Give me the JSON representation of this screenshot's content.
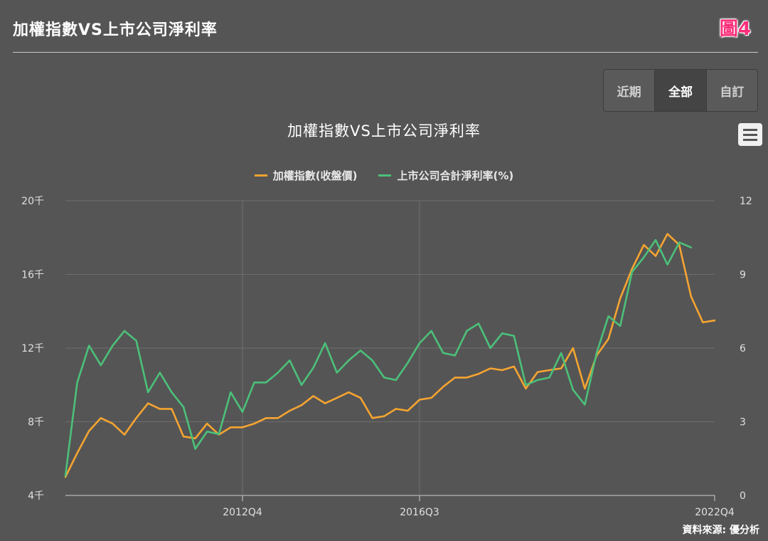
{
  "header": {
    "title": "加權指數VS上市公司淨利率",
    "badge": "圖4"
  },
  "range_selector": {
    "buttons": [
      {
        "label": "近期",
        "active": false
      },
      {
        "label": "全部",
        "active": true
      },
      {
        "label": "自訂",
        "active": false
      }
    ]
  },
  "menu_icon": "hamburger-menu-icon",
  "source_note": "資料來源: 優分析",
  "colors": {
    "background": "#555555",
    "index_series": "#f5a431",
    "margin_series": "#4cc07a",
    "grid": "#6e6e6e",
    "axis_text": "#e0e0e0"
  },
  "chart_data": {
    "type": "line",
    "title": "加權指數VS上市公司淨利率",
    "x_ticks": [
      "2012Q4",
      "2016Q3",
      "2022Q4"
    ],
    "x_tick_index": [
      15,
      30,
      55
    ],
    "left_axis": {
      "ticks": [
        "4千",
        "8千",
        "12千",
        "16千",
        "20千"
      ],
      "min": 4,
      "max": 20,
      "unit": "千"
    },
    "right_axis": {
      "ticks": [
        "0",
        "3",
        "6",
        "9",
        "12"
      ],
      "min": 0,
      "max": 12
    },
    "grid": true,
    "legend_position": "top-center",
    "series": [
      {
        "name": "加權指數(收盤價)",
        "axis": "left",
        "values": [
          5.0,
          6.3,
          7.5,
          8.2,
          7.9,
          7.3,
          8.2,
          9.0,
          8.7,
          8.7,
          7.2,
          7.1,
          7.9,
          7.3,
          7.7,
          7.7,
          7.9,
          8.2,
          8.2,
          8.6,
          8.9,
          9.4,
          9.0,
          9.3,
          9.6,
          9.3,
          8.2,
          8.3,
          8.7,
          8.6,
          9.2,
          9.3,
          9.9,
          10.4,
          10.4,
          10.6,
          10.9,
          10.8,
          11.0,
          9.8,
          10.7,
          10.8,
          10.9,
          12.0,
          9.8,
          11.6,
          12.5,
          14.7,
          16.3,
          17.6,
          17.0,
          18.2,
          17.6,
          14.8,
          13.4,
          13.5
        ],
        "x_offset": 0
      },
      {
        "name": "上市公司合計淨利率(%)",
        "axis": "right",
        "values": [
          0.8,
          4.6,
          6.1,
          5.3,
          6.1,
          6.7,
          6.3,
          4.2,
          5.0,
          4.2,
          3.6,
          1.9,
          2.6,
          2.5,
          4.2,
          3.4,
          4.6,
          4.6,
          5.0,
          5.5,
          4.5,
          5.2,
          6.2,
          5.0,
          5.5,
          5.9,
          5.5,
          4.8,
          4.7,
          5.4,
          6.2,
          6.7,
          5.8,
          5.7,
          6.7,
          7.0,
          6.0,
          6.6,
          6.5,
          4.5,
          4.7,
          4.8,
          5.8,
          4.3,
          3.7,
          5.8,
          7.3,
          6.9,
          9.1,
          9.7,
          10.4,
          9.4,
          10.3,
          10.1
        ],
        "x_offset": 0
      }
    ]
  }
}
